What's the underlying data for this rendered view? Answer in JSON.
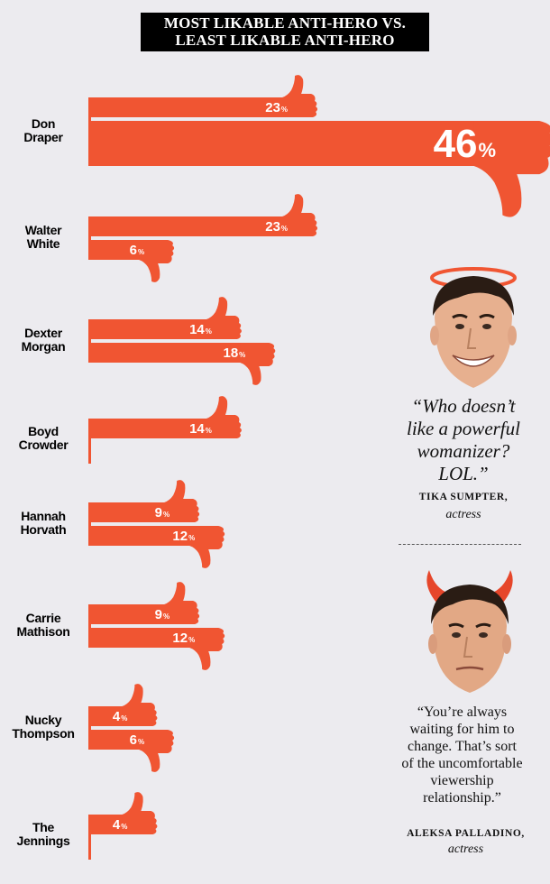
{
  "title": {
    "line1": "MOST LIKABLE ANTI-HERO VS.",
    "line2": "LEAST LIKABLE ANTI-HERO"
  },
  "colors": {
    "bar": "#f05532",
    "background": "#ecebef",
    "skin": "#e7b08f",
    "halo": "#f05532",
    "horns": "#e6462a"
  },
  "chart_data": {
    "type": "bar",
    "categories": [
      "Don Draper",
      "Walter White",
      "Dexter Morgan",
      "Boyd Crowder",
      "Hannah Horvath",
      "Carrie Mathison",
      "Nucky Thompson",
      "The Jennings"
    ],
    "category_lines": [
      [
        "Don",
        "Draper"
      ],
      [
        "Walter",
        "White"
      ],
      [
        "Dexter",
        "Morgan"
      ],
      [
        "Boyd",
        "Crowder"
      ],
      [
        "Hannah",
        "Horvath"
      ],
      [
        "Carrie",
        "Mathison"
      ],
      [
        "Nucky",
        "Thompson"
      ],
      [
        "The",
        "Jennings"
      ]
    ],
    "series": [
      {
        "name": "",
        "icon": "thumbs-up-icon",
        "values": [
          23,
          23,
          14,
          14,
          9,
          9,
          4,
          4
        ]
      },
      {
        "name": "",
        "icon": "thumbs-down-icon",
        "values": [
          46,
          6,
          18,
          null,
          12,
          12,
          6,
          null
        ]
      }
    ],
    "value_suffix": "%",
    "orientation": "horizontal"
  },
  "quotes": [
    {
      "icon": "halo-face-icon",
      "lines": [
        "“Who doesn’t",
        "like a powerful",
        "womanizer?",
        "LOL.”"
      ],
      "author": "TIKA SUMPTER,",
      "role": "actress"
    },
    {
      "icon": "devil-horns-face-icon",
      "lines": [
        "“You’re always",
        "waiting for him to",
        "change. That’s sort",
        "of the uncomfortable",
        "viewership",
        "relationship.”"
      ],
      "author": "ALEKSA PALLADINO,",
      "role": "actress"
    }
  ]
}
